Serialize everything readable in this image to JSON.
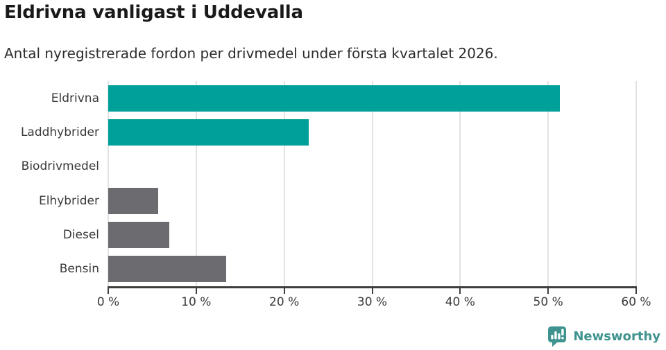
{
  "header": {
    "title": "Eldrivna vanligast i Uddevalla",
    "subtitle": "Antal nyregistrerade fordon per drivmedel under första kvartalet 2026."
  },
  "chart_data": {
    "type": "bar",
    "orientation": "horizontal",
    "title": "Eldrivna vanligast i Uddevalla",
    "subtitle": "Antal nyregistrerade fordon per drivmedel under första kvartalet 2026.",
    "categories": [
      "Eldrivna",
      "Laddhybrider",
      "Biodrivmedel",
      "Elhybrider",
      "Diesel",
      "Bensin"
    ],
    "values": [
      51.3,
      22.8,
      0,
      5.7,
      6.9,
      13.4
    ],
    "unit": "%",
    "xlabel": "",
    "ylabel": "",
    "xlim": [
      0,
      60
    ],
    "x_ticks": [
      "0 %",
      "10 %",
      "20 %",
      "30 %",
      "40 %",
      "50 %",
      "60 %"
    ],
    "bar_colors": [
      "#00a09a",
      "#00a09a",
      "#6b6b70",
      "#6b6b70",
      "#6b6b70",
      "#6b6b70"
    ],
    "grid": true,
    "legend": false
  },
  "footer": {
    "brand": "Newsworthy",
    "logo_icon": "bar-chart-speech-bubble-icon"
  },
  "colors": {
    "highlight": "#00a09a",
    "muted_bar": "#6b6b70",
    "gridline": "#e3e3e3",
    "axis": "#3e3e3e",
    "text": "#3a3a3a",
    "title": "#1a1a1a",
    "subtitle": "#2d2d2d",
    "brand": "#3e938e"
  }
}
